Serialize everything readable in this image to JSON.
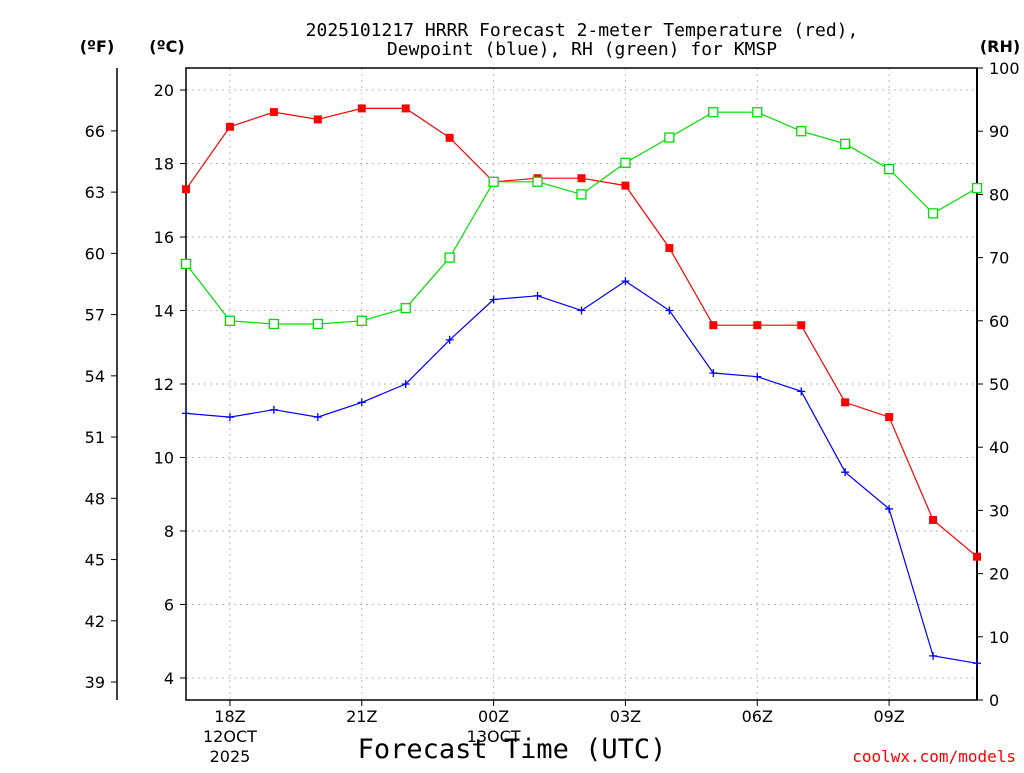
{
  "chart_data": {
    "type": "line",
    "title_line1": "2025101217 HRRR Forecast 2-meter Temperature (red),",
    "title_line2": "Dewpoint (blue), RH (green) for KMSP",
    "xlabel": "Forecast Time (UTC)",
    "credit": "coolwx.com/models",
    "units": {
      "fahrenheit": "(ºF)",
      "celsius": "(ºC)",
      "rh": "(RH)"
    },
    "x_hours": [
      17,
      18,
      19,
      20,
      21,
      22,
      23,
      24,
      25,
      26,
      27,
      28,
      29,
      30,
      31,
      32,
      33,
      34,
      35
    ],
    "x_ticks": [
      {
        "hour": 18,
        "label": "18Z",
        "date": "12OCT",
        "year": "2025"
      },
      {
        "hour": 21,
        "label": "21Z",
        "date": "",
        "year": ""
      },
      {
        "hour": 24,
        "label": "00Z",
        "date": "13OCT",
        "year": ""
      },
      {
        "hour": 27,
        "label": "03Z",
        "date": "",
        "year": ""
      },
      {
        "hour": 30,
        "label": "06Z",
        "date": "",
        "year": ""
      },
      {
        "hour": 33,
        "label": "09Z",
        "date": "",
        "year": ""
      }
    ],
    "x_range": [
      17,
      35
    ],
    "y_left_celsius": {
      "range": [
        3.4,
        20.6
      ],
      "ticks": [
        4,
        6,
        8,
        10,
        12,
        14,
        16,
        18,
        20
      ]
    },
    "y_left_fahrenheit": {
      "ticks": [
        39,
        42,
        45,
        48,
        51,
        54,
        57,
        60,
        63,
        66
      ]
    },
    "y_right_rh": {
      "range": [
        0,
        100
      ],
      "ticks": [
        0,
        10,
        20,
        30,
        40,
        50,
        60,
        70,
        80,
        90,
        100
      ]
    },
    "series": [
      {
        "name": "Temperature",
        "unit": "C",
        "color": "#ff0000",
        "marker": "filled-square",
        "values": [
          17.3,
          19.0,
          19.4,
          19.2,
          19.5,
          19.5,
          18.7,
          17.5,
          17.6,
          17.6,
          17.4,
          15.7,
          13.6,
          13.6,
          13.6,
          11.5,
          11.1,
          8.3,
          7.3
        ]
      },
      {
        "name": "Dewpoint",
        "unit": "C",
        "color": "#0000ff",
        "marker": "plus",
        "values": [
          11.2,
          11.1,
          11.3,
          11.1,
          11.5,
          12.0,
          13.2,
          14.3,
          14.4,
          14.0,
          14.8,
          14.0,
          12.3,
          12.2,
          11.8,
          9.6,
          8.6,
          4.6,
          4.4
        ]
      },
      {
        "name": "RH",
        "unit": "%",
        "color": "#00dd00",
        "marker": "open-square",
        "values": [
          69.0,
          60.0,
          59.5,
          59.5,
          60.0,
          62.0,
          70.0,
          82.0,
          82.0,
          80.0,
          85.0,
          89.0,
          93.0,
          93.0,
          90.0,
          88.0,
          84.0,
          77.0,
          81.0
        ]
      }
    ]
  }
}
